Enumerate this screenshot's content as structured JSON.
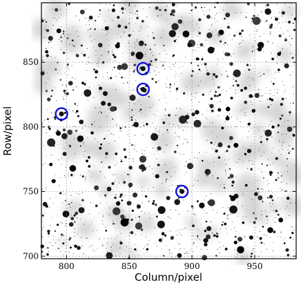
{
  "chart_data": {
    "type": "scatter",
    "title": "",
    "xlabel": "Column/pixel",
    "ylabel": "Row/pixel",
    "xlim": [
      780,
      983
    ],
    "ylim": [
      698,
      896
    ],
    "x_ticks": [
      800,
      850,
      900,
      950
    ],
    "y_ticks": [
      700,
      750,
      800,
      850
    ],
    "grid": true,
    "background": "star field image (grayscale, inverted)",
    "series": [
      {
        "marker": "circle",
        "color": "#1010e0",
        "points": [
          {
            "x": 796,
            "y": 810
          },
          {
            "x": 861,
            "y": 845
          },
          {
            "x": 861,
            "y": 829
          },
          {
            "x": 892,
            "y": 750
          }
        ]
      }
    ]
  }
}
